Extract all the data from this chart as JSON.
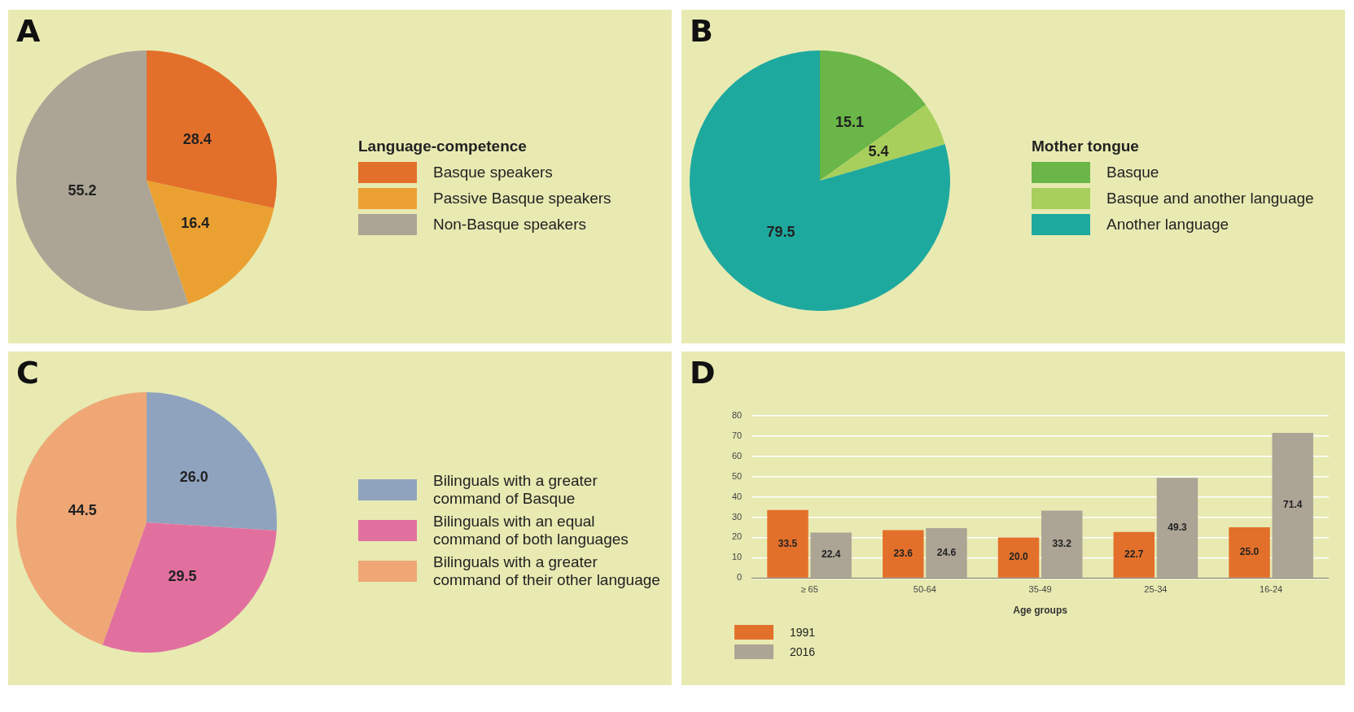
{
  "chart_data": [
    {
      "type": "pie",
      "title": "A",
      "legend_title": "Language-competence",
      "legend": "right",
      "categories": [
        "Basque speakers",
        "Passive Basque speakers",
        "Non-Basque speakers"
      ],
      "values": [
        28.4,
        16.4,
        55.2
      ],
      "colors": [
        "#e3702a",
        "#eba132",
        "#aca595"
      ],
      "value_labels": [
        "28.4",
        "16.4",
        "55.2"
      ]
    },
    {
      "type": "pie",
      "title": "B",
      "legend_title": "Mother tongue",
      "legend": "right",
      "categories": [
        "Basque",
        "Basque and another language",
        "Another language"
      ],
      "values": [
        15.1,
        5.4,
        79.5
      ],
      "colors": [
        "#6ab648",
        "#a8cf5c",
        "#1ea99f"
      ],
      "value_labels": [
        "15.1",
        "5.4",
        "79.5"
      ]
    },
    {
      "type": "pie",
      "title": "C",
      "legend": "right",
      "categories": [
        "Bilinguals with a greater command of Basque",
        "Bilinguals with an equal command of both languages",
        "Bilinguals with a greater command of their other language"
      ],
      "values": [
        26.0,
        29.5,
        44.5
      ],
      "colors": [
        "#8fa3bf",
        "#e2709f",
        "#eea775"
      ],
      "value_labels": [
        "26.0",
        "29.5",
        "44.5"
      ]
    },
    {
      "type": "bar",
      "title": "D",
      "xlabel": "Age groups",
      "legend": "bottom left",
      "grid": "y",
      "categories": [
        "≥ 65",
        "50-64",
        "35-49",
        "25-34",
        "16-24"
      ],
      "ylim": [
        0,
        80
      ],
      "yticks": [
        0,
        10,
        20,
        30,
        40,
        50,
        60,
        70,
        80
      ],
      "series": [
        {
          "name": "1991",
          "color": "#e3702a",
          "values": [
            33.5,
            23.6,
            20.0,
            22.7,
            25.0
          ],
          "value_labels": [
            "33.5",
            "23.6",
            "20.0",
            "22.7",
            "25.0"
          ]
        },
        {
          "name": "2016",
          "color": "#aca595",
          "values": [
            22.4,
            24.6,
            33.2,
            49.3,
            71.4
          ],
          "value_labels": [
            "22.4",
            "24.6",
            "33.2",
            "49.3",
            "71.4"
          ]
        }
      ]
    }
  ]
}
